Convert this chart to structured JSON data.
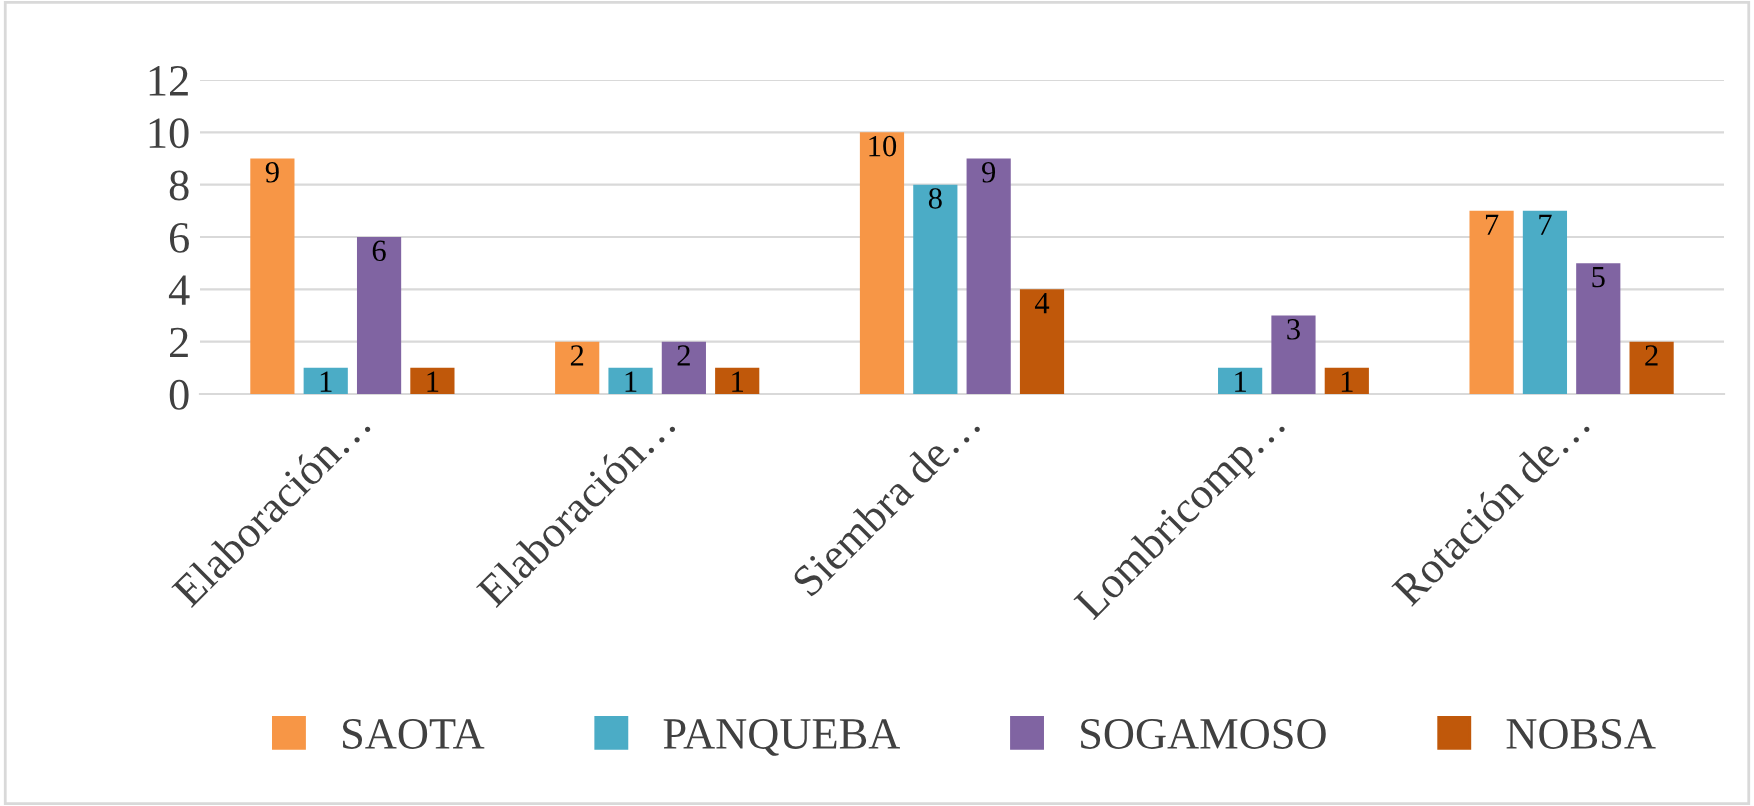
{
  "chart_data": {
    "type": "bar",
    "categories": [
      "Elaboración…",
      "Elaboración…",
      "Siembra de…",
      "Lombricomp…",
      "Rotación de…"
    ],
    "series": [
      {
        "name": "SAOTA",
        "color": "#f79646",
        "values": [
          9,
          2,
          10,
          null,
          7
        ]
      },
      {
        "name": "PANQUEBA",
        "color": "#4bacc6",
        "values": [
          1,
          1,
          8,
          1,
          7
        ]
      },
      {
        "name": "SOGAMOSO",
        "color": "#8064a2",
        "values": [
          6,
          2,
          9,
          3,
          5
        ]
      },
      {
        "name": "NOBSA",
        "color": "#c0580a",
        "values": [
          1,
          1,
          4,
          1,
          2
        ]
      }
    ],
    "ylim": [
      0,
      12
    ],
    "yticks": [
      0,
      2,
      4,
      6,
      8,
      10,
      12
    ],
    "grid": "y",
    "legend": "bottom",
    "data_labels": true
  }
}
